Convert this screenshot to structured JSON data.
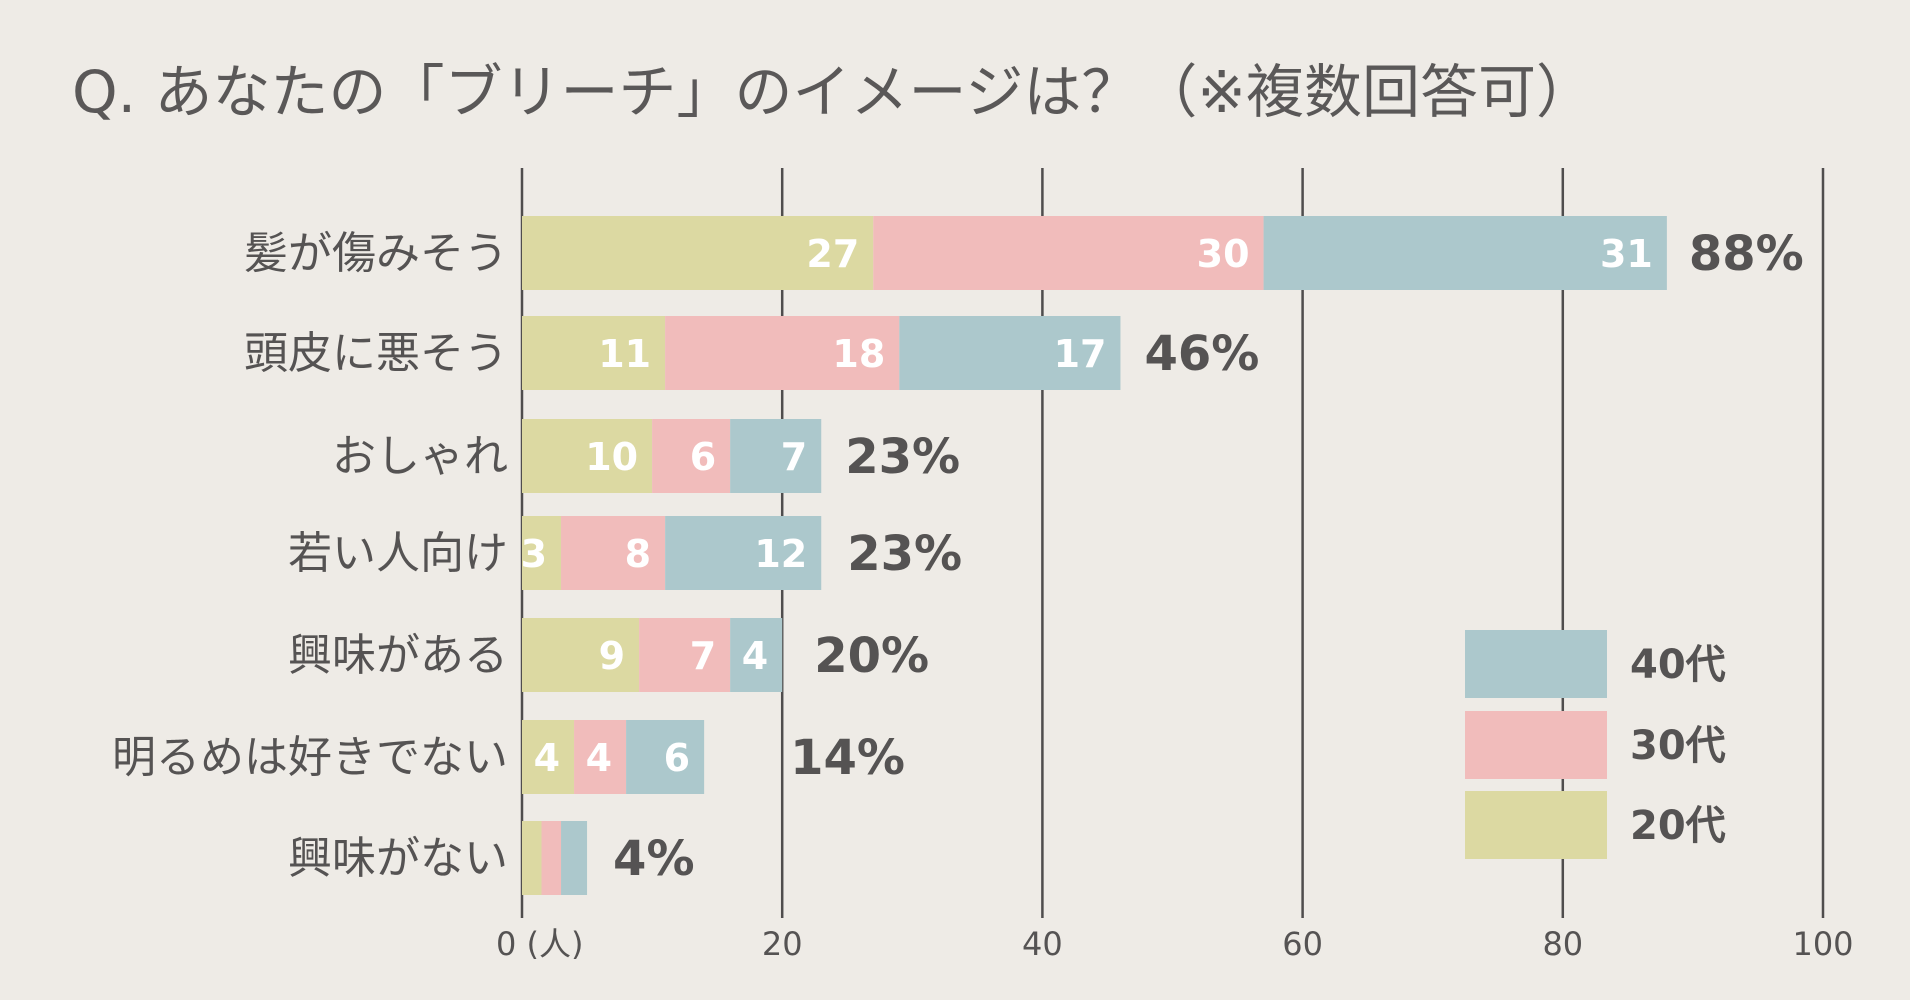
{
  "chart_data": {
    "type": "bar",
    "orientation": "horizontal",
    "stacked": true,
    "title": "Q. あなたの「ブリーチ」のイメージは？（※複数回答可）",
    "xlabel_unit": "(人)",
    "xlim": [
      0,
      100
    ],
    "xticks": [
      0,
      20,
      40,
      60,
      80,
      100
    ],
    "grid": true,
    "legend_position": "bottom-right",
    "categories": [
      "髪が傷みそう",
      "頭皮に悪そう",
      "おしゃれ",
      "若い人向け",
      "興味がある",
      "明るめは好きでない",
      "興味がない"
    ],
    "series": [
      {
        "name": "20代",
        "color": "#dcd9a2",
        "values": [
          27,
          11,
          10,
          3,
          9,
          4,
          1.5
        ],
        "labels": [
          "27",
          "11",
          "10",
          "3",
          "9",
          "4",
          ""
        ]
      },
      {
        "name": "30代",
        "color": "#f1bcbb",
        "values": [
          30,
          18,
          6,
          8,
          7,
          4,
          1.5
        ],
        "labels": [
          "30",
          "18",
          "6",
          "8",
          "7",
          "4",
          ""
        ]
      },
      {
        "name": "40代",
        "color": "#acc8cc",
        "values": [
          31,
          17,
          7,
          12,
          4,
          6,
          2
        ],
        "labels": [
          "31",
          "17",
          "7",
          "12",
          "4",
          "6",
          ""
        ]
      }
    ],
    "percentages": [
      "88%",
      "46%",
      "23%",
      "23%",
      "20%",
      "14%",
      "4%"
    ],
    "legend": [
      "40代",
      "30代",
      "20代"
    ]
  }
}
